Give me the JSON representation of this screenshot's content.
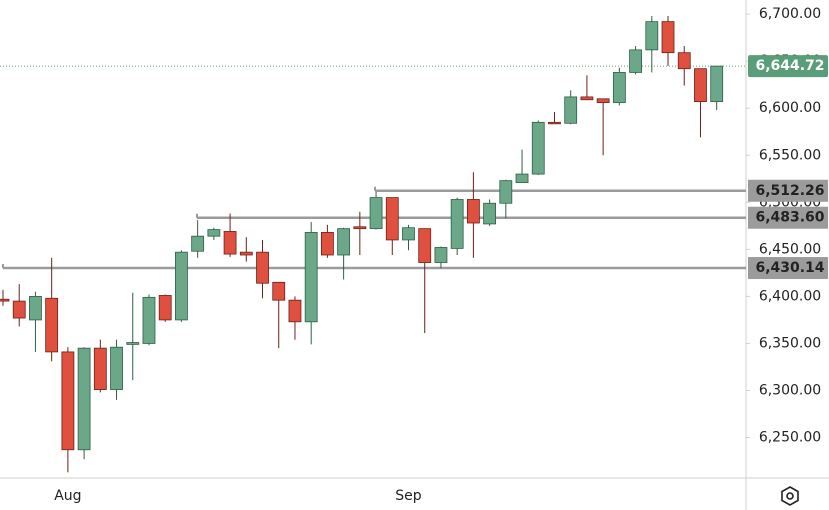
{
  "chart_data": {
    "type": "candlestick",
    "categories": [
      null,
      null,
      null,
      null,
      "Aug",
      null,
      null,
      null,
      null,
      null,
      null,
      null,
      null,
      null,
      null,
      null,
      null,
      null,
      null,
      null,
      null,
      null,
      null,
      null,
      null,
      "Sep",
      null,
      null,
      null,
      null,
      null,
      null,
      null,
      null,
      null,
      null,
      null,
      null,
      null,
      null,
      null,
      null,
      null,
      null,
      null
    ],
    "open": [
      6397,
      6395,
      6375,
      6398,
      6341,
      6237,
      6345,
      6301,
      6349,
      6350,
      6401,
      6375,
      6448,
      6464,
      6469,
      6447,
      6447,
      6415,
      6396,
      6373,
      6468,
      6444,
      6474,
      6472,
      6505,
      6460,
      6472,
      6436,
      6451,
      6503,
      6477,
      6499,
      6521,
      6530,
      6585,
      6584,
      6612,
      6610,
      6606,
      6638,
      6662,
      6692,
      6659,
      6642,
      6607
    ],
    "high": [
      6407,
      6413,
      6405,
      6441,
      6346,
      6346,
      6354,
      6354,
      6404,
      6402,
      6402,
      6449,
      6481,
      6473,
      6488,
      6463,
      6460,
      6415,
      6400,
      6479,
      6476,
      6473,
      6490,
      6511,
      6505,
      6476,
      6472,
      6453,
      6505,
      6532,
      6503,
      6524,
      6556,
      6587,
      6596,
      6619,
      6635,
      6610,
      6643,
      6666,
      6698,
      6698,
      6666,
      6642,
      6645
    ],
    "low": [
      6390,
      6368,
      6341,
      6331,
      6213,
      6227,
      6298,
      6290,
      6311,
      6348,
      6373,
      6373,
      6441,
      6460,
      6442,
      6437,
      6398,
      6345,
      6354,
      6349,
      6441,
      6418,
      6444,
      6471,
      6444,
      6449,
      6361,
      6430,
      6444,
      6441,
      6475,
      6483,
      6521,
      6529,
      6584,
      6583,
      6609,
      6550,
      6603,
      6636,
      6638,
      6645,
      6624,
      6569,
      6598
    ],
    "close": [
      6395,
      6377,
      6400,
      6341,
      6237,
      6345,
      6301,
      6346,
      6351,
      6399,
      6375,
      6447,
      6464,
      6471,
      6445,
      6444,
      6414,
      6396,
      6373,
      6468,
      6444,
      6472,
      6472,
      6505,
      6460,
      6473,
      6436,
      6452,
      6503,
      6478,
      6499,
      6523,
      6530,
      6585,
      6584,
      6612,
      6609,
      6606,
      6638,
      6662,
      6692,
      6659,
      6642,
      6607,
      6644.72
    ],
    "up_color": "#6aa889",
    "down_color": "#e0503f",
    "ylim": [
      6207,
      6715
    ],
    "yticks": [
      {
        "value": 6250,
        "label": "6,250.00"
      },
      {
        "value": 6300,
        "label": "6,300.00"
      },
      {
        "value": 6350,
        "label": "6,350.00"
      },
      {
        "value": 6400,
        "label": "6,400.00"
      },
      {
        "value": 6450,
        "label": "6,450.00"
      },
      {
        "value": 6500,
        "label": "6,500.00"
      },
      {
        "value": 6550,
        "label": "6,550.00"
      },
      {
        "value": 6600,
        "label": "6,600.00"
      },
      {
        "value": 6650,
        "label": "6,650.00"
      },
      {
        "value": 6700,
        "label": "6,700.00"
      }
    ],
    "levels": {
      "values": [
        6512.26,
        6483.6,
        6430.14
      ],
      "value_labels": [
        "6,512.26",
        "6,483.60",
        "6,430.14"
      ],
      "color": "#9b9b9b"
    },
    "last_price": {
      "value": 6644.72,
      "label": "6,644.72",
      "color": "#5a9e79"
    }
  }
}
